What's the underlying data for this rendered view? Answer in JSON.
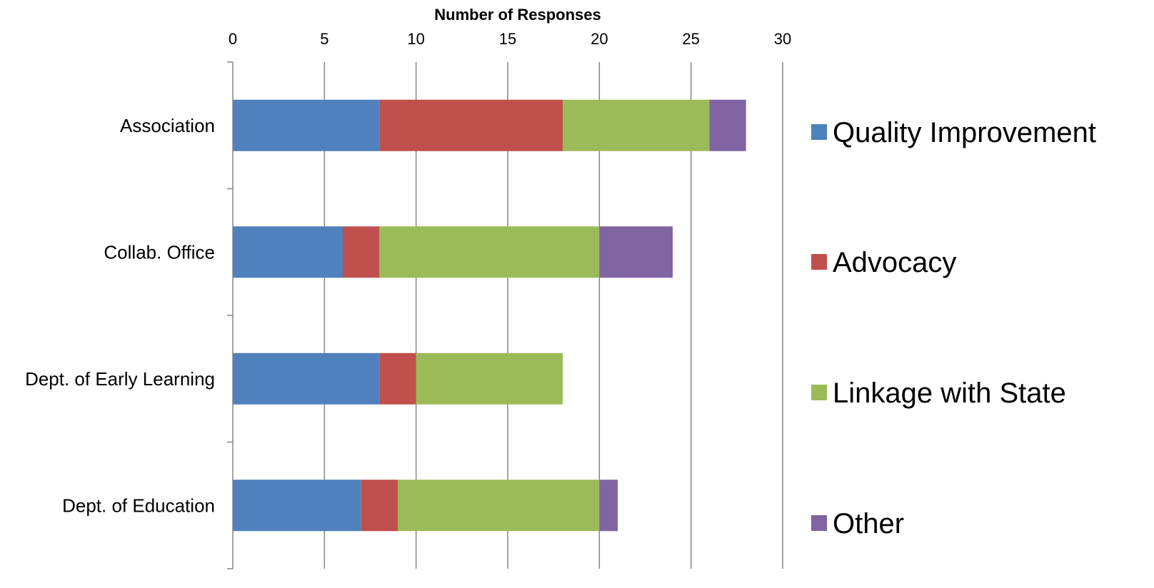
{
  "chart_data": {
    "type": "bar",
    "orientation": "horizontal",
    "stacked": true,
    "title": "",
    "xlabel": "Number of Responses",
    "ylabel": "",
    "xlim": [
      0,
      30
    ],
    "x_ticks": [
      0,
      5,
      10,
      15,
      20,
      25,
      30
    ],
    "x_axis_position": "top",
    "grid": true,
    "legend_position": "right",
    "categories": [
      "Association",
      "Collab. Office",
      "Dept. of Early Learning",
      "Dept. of Education"
    ],
    "series": [
      {
        "name": "Quality Improvement",
        "color": "#4f81bd",
        "values": [
          8,
          6,
          8,
          7
        ]
      },
      {
        "name": "Advocacy",
        "color": "#c0504d",
        "values": [
          10,
          2,
          2,
          2
        ]
      },
      {
        "name": "Linkage with State",
        "color": "#9bbb59",
        "values": [
          8,
          12,
          8,
          11
        ]
      },
      {
        "name": "Other",
        "color": "#8064a2",
        "values": [
          2,
          4,
          0,
          1
        ]
      }
    ]
  }
}
